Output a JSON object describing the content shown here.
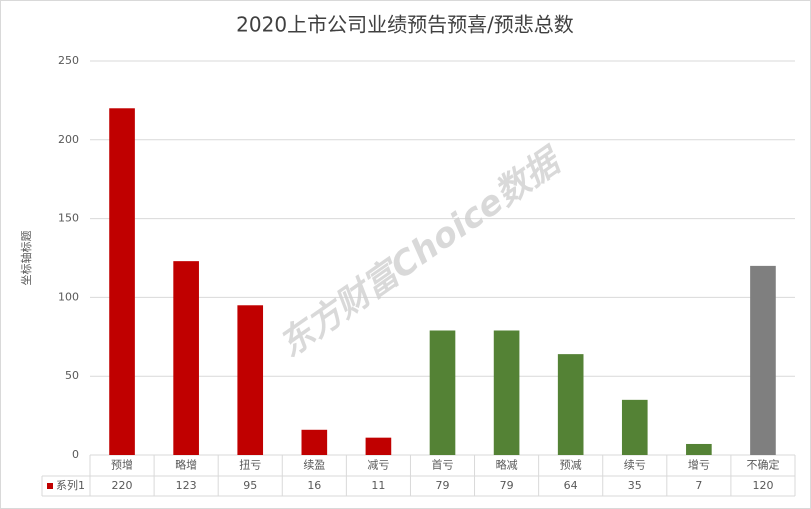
{
  "chart_data": {
    "type": "bar",
    "title": "2020上市公司业绩预告预喜/预悲总数",
    "y_label": "坐标轴标题",
    "watermark": "东方财富Choice数据",
    "categories": [
      "预增",
      "略增",
      "扭亏",
      "续盈",
      "减亏",
      "首亏",
      "略减",
      "预减",
      "续亏",
      "增亏",
      "不确定"
    ],
    "series": [
      {
        "name": "系列1",
        "color": "#c00000",
        "values": [
          220,
          123,
          95,
          16,
          11,
          79,
          79,
          64,
          35,
          7,
          120
        ],
        "colors": [
          "#c00000",
          "#c00000",
          "#c00000",
          "#c00000",
          "#c00000",
          "#548235",
          "#548235",
          "#548235",
          "#548235",
          "#548235",
          "#7f7f7f"
        ]
      }
    ],
    "ylim": [
      0,
      250
    ],
    "yticks": [
      0,
      50,
      100,
      150,
      200,
      250
    ],
    "grid": true
  }
}
